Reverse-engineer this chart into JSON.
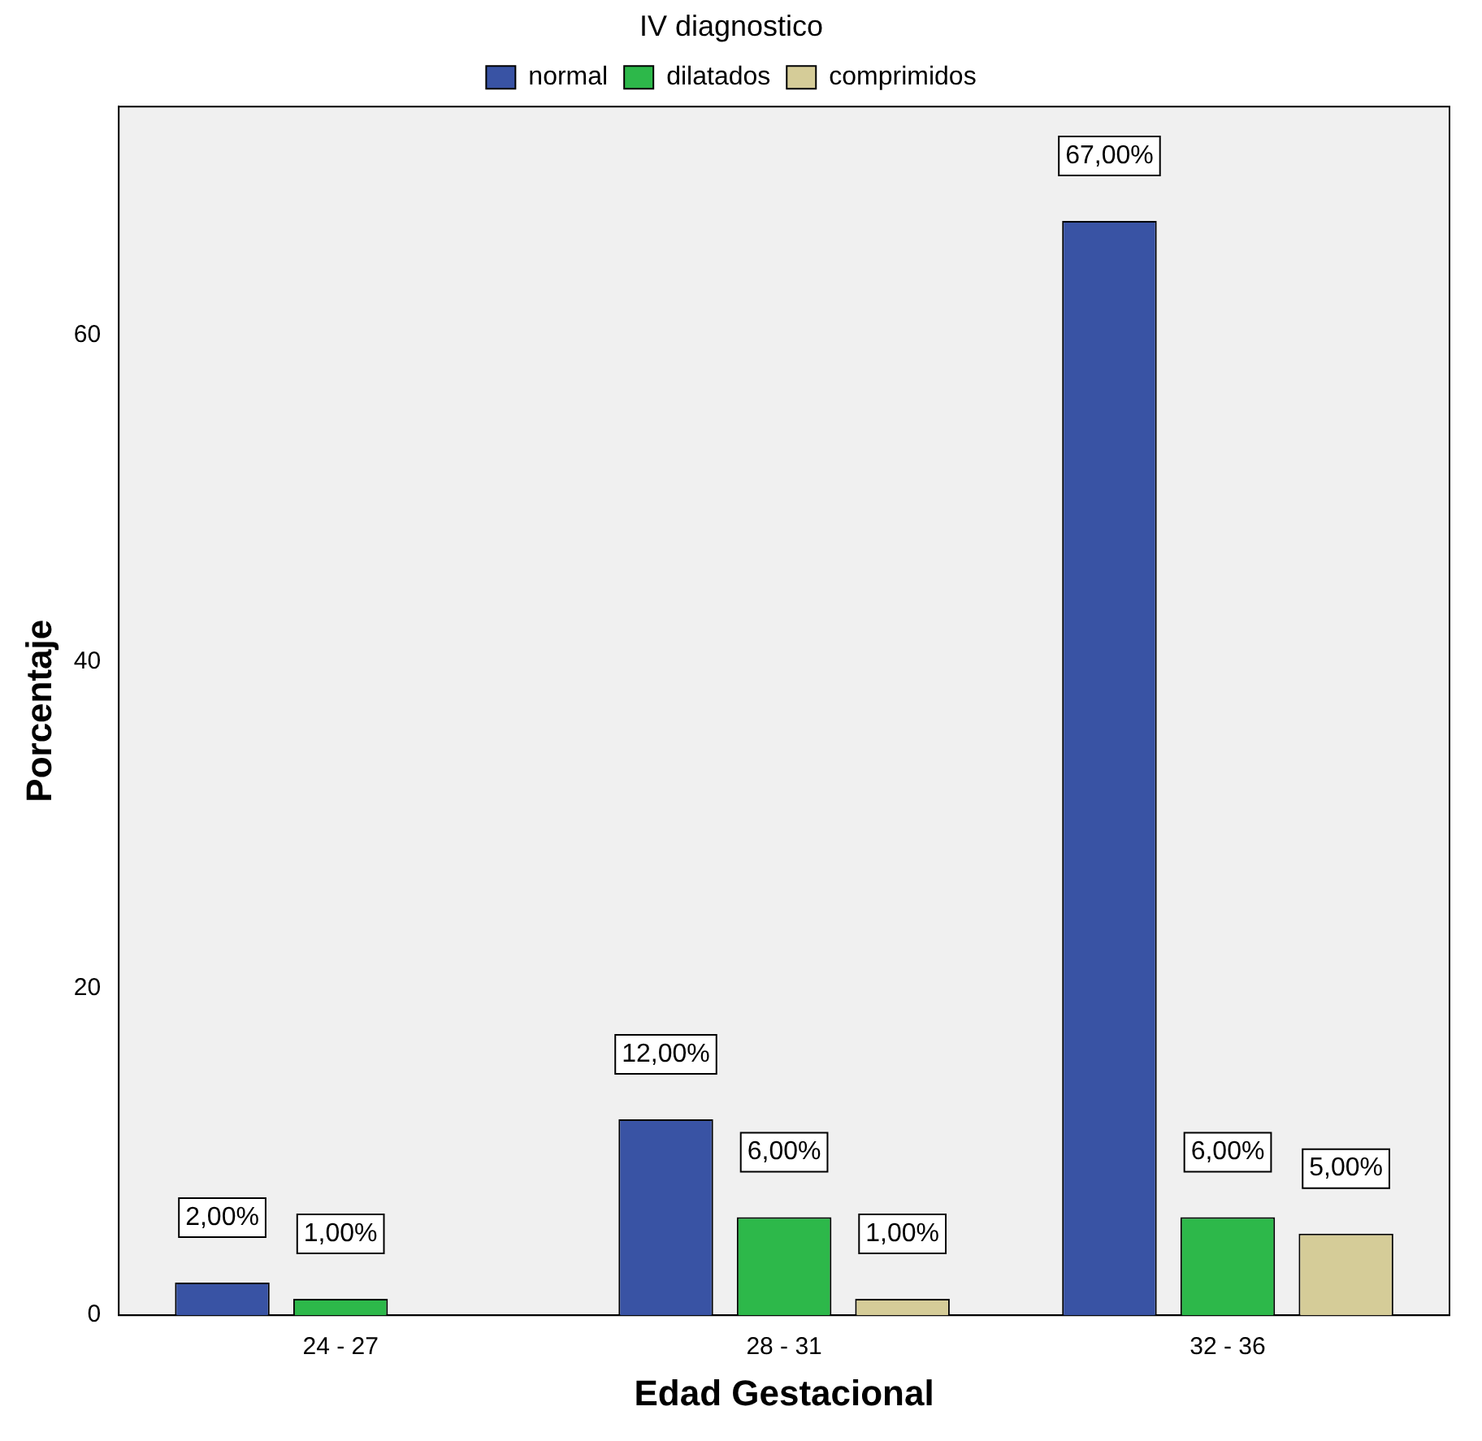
{
  "chart_data": {
    "type": "bar",
    "xlabel": "Edad Gestacional",
    "ylabel": "Porcentaje",
    "legend_title": "IV diagnostico",
    "legend": "top",
    "grid": false,
    "categories": [
      "24 - 27",
      "28 - 31",
      "32 - 36"
    ],
    "ylim": [
      0,
      74
    ],
    "yticks": [
      0,
      20,
      40,
      60
    ],
    "series": [
      {
        "name": "normal",
        "color": "#3953a4",
        "values": [
          2,
          12,
          67
        ],
        "value_labels": [
          "2,00%",
          "12,00%",
          "67,00%"
        ]
      },
      {
        "name": "dilatados",
        "color": "#2db84a",
        "values": [
          1,
          6,
          6
        ],
        "value_labels": [
          "1,00%",
          "6,00%",
          "6,00%"
        ]
      },
      {
        "name": "comprimidos",
        "color": "#d5cc98",
        "values": [
          null,
          1,
          5
        ],
        "value_labels": [
          null,
          "1,00%",
          "5,00%"
        ]
      }
    ]
  }
}
